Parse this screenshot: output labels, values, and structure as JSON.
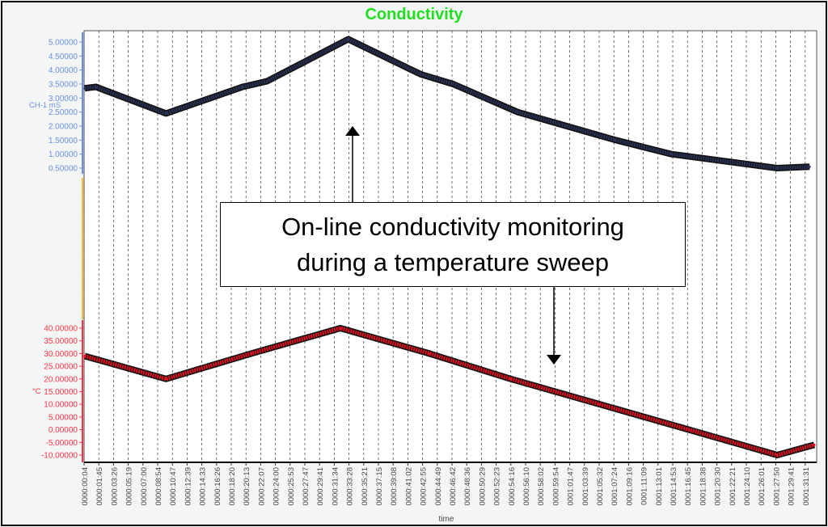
{
  "chart_data": [
    {
      "type": "line",
      "title": "Conductivity",
      "ylabel": "CH-1 mS",
      "xlabel": "time",
      "ylim": [
        0.5,
        5.0
      ],
      "yticks": [
        "5.00000",
        "4.50000",
        "4.00000",
        "3.50000",
        "3.00000",
        "2.50000",
        "2.00000",
        "1.50000",
        "1.00000",
        "0.50000"
      ],
      "color": "#2a3358",
      "x_unit": "minutes",
      "points": [
        [
          0.07,
          3.35
        ],
        [
          1.5,
          3.4
        ],
        [
          10.4,
          2.45
        ],
        [
          20.1,
          3.4
        ],
        [
          23.2,
          3.6
        ],
        [
          33.5,
          5.1
        ],
        [
          42.7,
          3.85
        ],
        [
          46.8,
          3.5
        ],
        [
          55,
          2.5
        ],
        [
          61.2,
          2.0
        ],
        [
          67.4,
          1.5
        ],
        [
          74.5,
          1.0
        ],
        [
          87.9,
          0.5
        ],
        [
          92,
          0.55
        ]
      ]
    },
    {
      "type": "line",
      "ylabel": "°C",
      "ylim": [
        -10,
        40
      ],
      "yticks": [
        "40.00000",
        "35.00000",
        "30.00000",
        "25.00000",
        "20.00000",
        "15.00000",
        "10.00000",
        "5.00000",
        "0.00000",
        "-5.00000",
        "-10.00000"
      ],
      "color": "#e01020",
      "x_unit": "minutes",
      "points": [
        [
          0.07,
          29
        ],
        [
          10.4,
          20
        ],
        [
          21.2,
          30
        ],
        [
          32.5,
          40
        ],
        [
          43.8,
          30
        ],
        [
          54.1,
          20
        ],
        [
          65.4,
          10
        ],
        [
          76.7,
          0
        ],
        [
          87.9,
          -10
        ],
        [
          92.6,
          -6
        ]
      ]
    }
  ],
  "xticks": [
    "0000:00:04",
    "0000:01:45",
    "0000:03:26",
    "0000:05:19",
    "0000:07:00",
    "0000:08:54",
    "0000:10:47",
    "0000:12:39",
    "0000:14:33",
    "0000:16:26",
    "0000:18:20",
    "0000:20:13",
    "0000:22:07",
    "0000:24:00",
    "0000:25:53",
    "0000:27:47",
    "0000:29:41",
    "0000:31:34",
    "0000:33:28",
    "0000:35:21",
    "0000:37:15",
    "0000:39:08",
    "0000:41:02",
    "0000:42:55",
    "0000:44:49",
    "0000:46:42",
    "0000:48:36",
    "0000:50:29",
    "0000:52:23",
    "0000:54:16",
    "0000:56:10",
    "0000:58:02",
    "0000:59:54",
    "0001:01:47",
    "0001:03:39",
    "0001:05:32",
    "0001:07:24",
    "0001:09:16",
    "0001:11:09",
    "0001:13:01",
    "0001:14:53",
    "0001:16:45",
    "0001:18:38",
    "0001:20:30",
    "0001:22:21",
    "0001:24:10",
    "0001:26:01",
    "0001:27:50",
    "0001:29:41",
    "0001:31:31"
  ],
  "annotation": {
    "line1": "On-line conductivity monitoring",
    "line2": "during a temperature sweep"
  }
}
